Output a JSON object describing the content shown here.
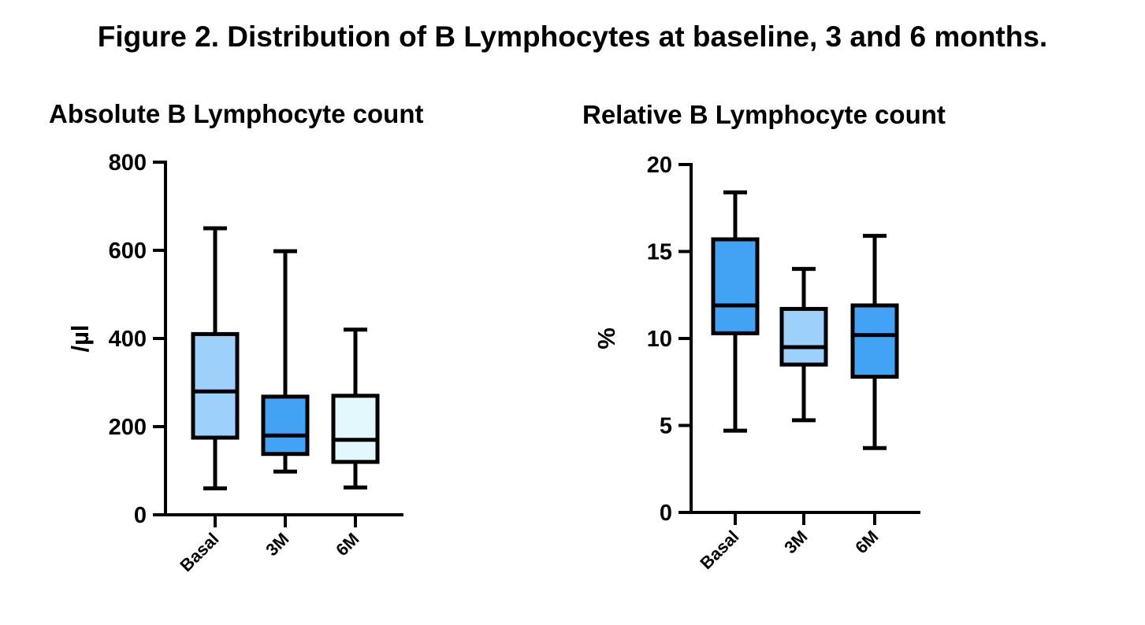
{
  "figure_title": "Figure 2. Distribution of B Lymphocytes at baseline, 3 and 6 months.",
  "colors": {
    "box_light": "#9dd1fb",
    "box_medium": "#42a2f4",
    "box_pale": "#e2f8fd",
    "stroke": "#000000"
  },
  "chart_data": [
    {
      "type": "box",
      "title": "Absolute B Lymphocyte count",
      "xlabel": "",
      "ylabel": "/µl",
      "ylim": [
        0,
        800
      ],
      "yticks": [
        0,
        200,
        400,
        600,
        800
      ],
      "categories": [
        "Basal",
        "3M",
        "6M"
      ],
      "boxes": [
        {
          "category": "Basal",
          "min": 60,
          "q1": 175,
          "median": 280,
          "q3": 410,
          "max": 650,
          "color": "#9dd1fb"
        },
        {
          "category": "3M",
          "min": 98,
          "q1": 138,
          "median": 180,
          "q3": 268,
          "max": 598,
          "color": "#42a2f4"
        },
        {
          "category": "6M",
          "min": 62,
          "q1": 120,
          "median": 170,
          "q3": 270,
          "max": 420,
          "color": "#e2f8fd"
        }
      ],
      "grid": false
    },
    {
      "type": "box",
      "title": "Relative B Lymphocyte count",
      "xlabel": "",
      "ylabel": "%",
      "ylim": [
        0,
        20
      ],
      "yticks": [
        0,
        5,
        10,
        15,
        20
      ],
      "categories": [
        "Basal",
        "3M",
        "6M"
      ],
      "boxes": [
        {
          "category": "Basal",
          "min": 4.7,
          "q1": 10.3,
          "median": 11.9,
          "q3": 15.7,
          "max": 18.4,
          "color": "#42a2f4"
        },
        {
          "category": "3M",
          "min": 5.3,
          "q1": 8.5,
          "median": 9.5,
          "q3": 11.7,
          "max": 14.0,
          "color": "#9dd1fb"
        },
        {
          "category": "6M",
          "min": 3.7,
          "q1": 7.8,
          "median": 10.2,
          "q3": 11.9,
          "max": 15.9,
          "color": "#42a2f4"
        }
      ],
      "grid": false
    }
  ]
}
